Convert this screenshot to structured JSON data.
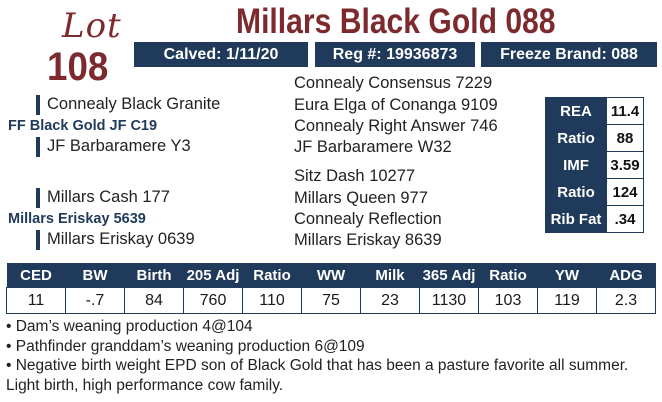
{
  "lot": {
    "word": "Lot",
    "number": "108"
  },
  "title": "Millars Black Gold 088",
  "info": {
    "calved": "Calved: 1/11/20",
    "reg": "Reg #: 19936873",
    "freeze": "Freeze Brand: 088"
  },
  "pedigree": {
    "sire": "FF Black Gold JF C19",
    "sire_sire": "Connealy Black Granite",
    "sire_dam": "JF Barbaramere Y3",
    "dam": "Millars Eriskay 5639",
    "dam_sire": "Millars Cash 177",
    "dam_dam": "Millars Eriskay 0639",
    "ggp": [
      "Connealy Consensus 7229",
      "Eura Elga of Conanga 9109",
      "Connealy Right Answer 746",
      "JF Barbaramere W32",
      "Sitz Dash 10277",
      "Millars Queen 977",
      "Connealy Reflection",
      "Millars Eriskay 8639"
    ]
  },
  "evals": [
    {
      "label": "REA",
      "value": "11.4"
    },
    {
      "label": "Ratio",
      "value": "88"
    },
    {
      "label": "IMF",
      "value": "3.59"
    },
    {
      "label": "Ratio",
      "value": "124"
    },
    {
      "label": "Rib Fat",
      "value": ".34"
    }
  ],
  "epd": {
    "headers": [
      "CED",
      "BW",
      "Birth",
      "205 Adj",
      "Ratio",
      "WW",
      "Milk",
      "365 Adj",
      "Ratio",
      "YW",
      "ADG"
    ],
    "values": [
      "11",
      "-.7",
      "84",
      "760",
      "110",
      "75",
      "23",
      "1130",
      "103",
      "119",
      "2.3"
    ]
  },
  "notes": [
    "• Dam’s weaning production 4@104",
    "• Pathfinder granddam’s weaning production 6@109",
    "• Negative birth weight EPD son of Black Gold that has been a pasture favorite all summer. Light birth, high performance cow family."
  ]
}
